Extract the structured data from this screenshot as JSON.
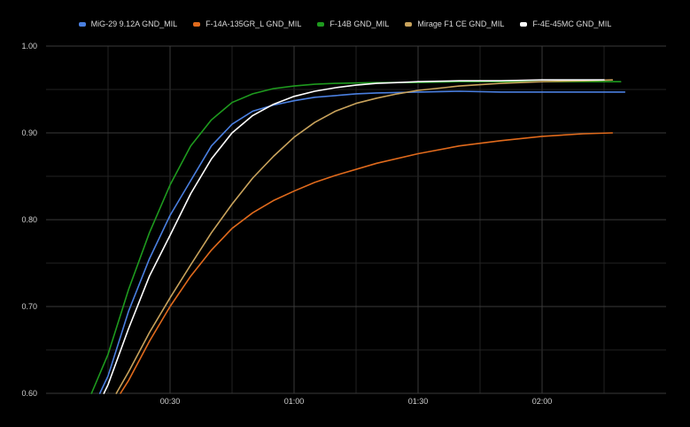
{
  "chart_data": {
    "type": "line",
    "title": "",
    "xlabel": "",
    "ylabel": "",
    "xlim": [
      0,
      150
    ],
    "ylim": [
      0.6,
      1.0
    ],
    "x_ticks": [
      {
        "value": 30,
        "label": "00:30"
      },
      {
        "value": 60,
        "label": "01:00"
      },
      {
        "value": 90,
        "label": "01:30"
      },
      {
        "value": 120,
        "label": "02:00"
      }
    ],
    "y_ticks": [
      {
        "value": 0.6,
        "label": "0.60"
      },
      {
        "value": 0.7,
        "label": "0.70"
      },
      {
        "value": 0.8,
        "label": "0.80"
      },
      {
        "value": 0.9,
        "label": "0.90"
      },
      {
        "value": 1.0,
        "label": "1.00"
      }
    ],
    "grid": true,
    "legend_position": "top-center",
    "series": [
      {
        "name": "MiG-29 9.12A GND_MIL",
        "color": "#4a7fe0",
        "x": [
          13,
          15,
          20,
          25,
          30,
          35,
          40,
          45,
          50,
          55,
          60,
          65,
          70,
          75,
          80,
          90,
          100,
          110,
          120,
          130,
          140
        ],
        "y": [
          0.6,
          0.62,
          0.695,
          0.755,
          0.805,
          0.845,
          0.885,
          0.91,
          0.925,
          0.932,
          0.937,
          0.941,
          0.943,
          0.945,
          0.946,
          0.947,
          0.948,
          0.947,
          0.947,
          0.947,
          0.947
        ]
      },
      {
        "name": "F-14A-135GR_L GND_MIL",
        "color": "#e06a1c",
        "x": [
          18,
          20,
          25,
          30,
          35,
          40,
          45,
          50,
          55,
          60,
          65,
          70,
          80,
          90,
          100,
          110,
          120,
          130,
          137
        ],
        "y": [
          0.6,
          0.615,
          0.66,
          0.7,
          0.735,
          0.765,
          0.79,
          0.808,
          0.822,
          0.833,
          0.843,
          0.851,
          0.865,
          0.876,
          0.885,
          0.891,
          0.896,
          0.899,
          0.9
        ]
      },
      {
        "name": "F-14B GND_MIL",
        "color": "#1e9a1e",
        "x": [
          11,
          15,
          20,
          25,
          30,
          35,
          40,
          45,
          50,
          55,
          60,
          65,
          70,
          80,
          90,
          100,
          110,
          120,
          130,
          139
        ],
        "y": [
          0.6,
          0.645,
          0.72,
          0.785,
          0.84,
          0.885,
          0.915,
          0.935,
          0.945,
          0.951,
          0.954,
          0.956,
          0.957,
          0.958,
          0.958,
          0.959,
          0.959,
          0.959,
          0.959,
          0.959
        ]
      },
      {
        "name": "Mirage F1 CE GND_MIL",
        "color": "#c9a35c",
        "x": [
          17,
          20,
          25,
          30,
          35,
          40,
          45,
          50,
          55,
          60,
          65,
          70,
          75,
          80,
          85,
          90,
          100,
          110,
          120,
          130,
          137
        ],
        "y": [
          0.6,
          0.625,
          0.67,
          0.71,
          0.748,
          0.785,
          0.818,
          0.848,
          0.873,
          0.895,
          0.912,
          0.925,
          0.934,
          0.94,
          0.945,
          0.949,
          0.954,
          0.957,
          0.959,
          0.96,
          0.961
        ]
      },
      {
        "name": "F-4E-45MC GND_MIL",
        "color": "#ffffff",
        "x": [
          14,
          15,
          20,
          25,
          30,
          35,
          40,
          45,
          50,
          55,
          60,
          65,
          70,
          75,
          80,
          85,
          90,
          100,
          110,
          120,
          130,
          135
        ],
        "y": [
          0.6,
          0.61,
          0.675,
          0.735,
          0.782,
          0.83,
          0.87,
          0.9,
          0.92,
          0.933,
          0.942,
          0.948,
          0.952,
          0.955,
          0.957,
          0.958,
          0.959,
          0.96,
          0.96,
          0.961,
          0.961,
          0.961
        ]
      }
    ]
  }
}
